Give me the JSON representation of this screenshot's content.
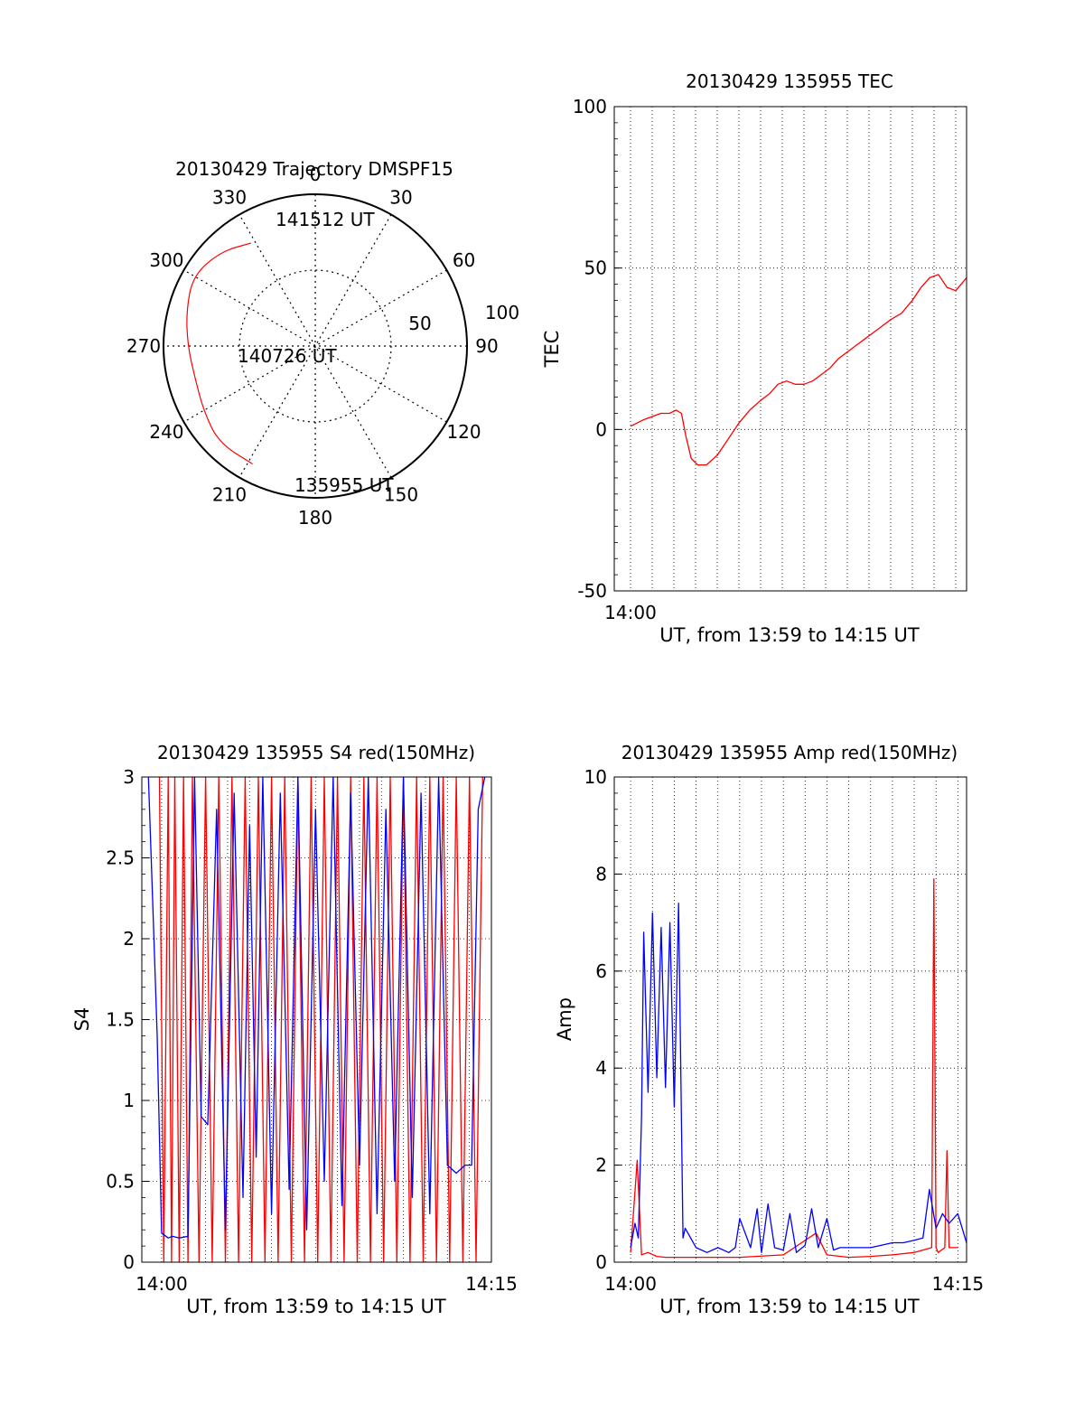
{
  "chart_data": [
    {
      "id": "trajectory",
      "type": "polar",
      "title": "20130429 Trajectory DMSPF15",
      "azimuth_labels": [
        "0",
        "30",
        "60",
        "90",
        "120",
        "150",
        "180",
        "210",
        "240",
        "270",
        "300",
        "330"
      ],
      "ring_labels": [
        "50",
        "100"
      ],
      "r_max": 100,
      "track_color": "#ff0000",
      "track": [
        {
          "az": 328,
          "r": 80
        },
        {
          "az": 315,
          "r": 88
        },
        {
          "az": 300,
          "r": 93
        },
        {
          "az": 285,
          "r": 88
        },
        {
          "az": 270,
          "r": 84
        },
        {
          "az": 255,
          "r": 82
        },
        {
          "az": 240,
          "r": 85
        },
        {
          "az": 225,
          "r": 90
        },
        {
          "az": 208,
          "r": 88
        }
      ],
      "annotations": [
        "141512 UT",
        "140726 UT",
        "135955 UT"
      ]
    },
    {
      "id": "tec",
      "type": "line",
      "title": "20130429 135955 TEC",
      "ylabel": "TEC",
      "xlabel": "UT, from 13:59 to 14:15 UT",
      "ylim": [
        -50,
        100
      ],
      "yticks": [
        "100",
        "50",
        "0",
        "-50"
      ],
      "xticks": [
        "14:00"
      ],
      "x_unit": "minutes after 14:00",
      "xlim": [
        -0.75,
        15.5
      ],
      "grid": true,
      "series": [
        {
          "color": "#ff0000",
          "x": [
            0,
            0.3,
            0.6,
            1.0,
            1.4,
            1.8,
            2.1,
            2.35,
            2.55,
            2.8,
            3.1,
            3.5,
            4.0,
            4.5,
            5.0,
            5.5,
            6.0,
            6.4,
            6.8,
            7.2,
            7.6,
            8.0,
            8.4,
            8.8,
            9.2,
            9.6,
            10.0,
            10.4,
            10.8,
            11.2,
            11.6,
            12.0,
            12.5,
            13.0,
            13.4,
            13.8,
            14.2,
            14.6,
            15.0,
            15.5
          ],
          "values": [
            1,
            2,
            3,
            4,
            5,
            5,
            6,
            5,
            -2,
            -9,
            -11,
            -11,
            -8,
            -3,
            2,
            6,
            9,
            11,
            14,
            15,
            14,
            14,
            15,
            17,
            19,
            22,
            24,
            26,
            28,
            30,
            32,
            34,
            36,
            40,
            44,
            47,
            48,
            44,
            43,
            47
          ]
        }
      ]
    },
    {
      "id": "s4",
      "type": "line",
      "title": "20130429 135955 S4 red(150MHz)",
      "ylabel": "S4",
      "xlabel": "UT, from 13:59 to 14:15 UT",
      "ylim": [
        0,
        3
      ],
      "yticks": [
        "3",
        "2.5",
        "2",
        "1.5",
        "1",
        "0.5",
        "0"
      ],
      "xticks": [
        "14:00",
        "14:15"
      ],
      "x_unit": "minutes after 14:00",
      "xlim": [
        -0.9,
        15.0
      ],
      "grid": true,
      "series": [
        {
          "color": "#ff0000",
          "x": [
            -0.1,
            0.1,
            0.3,
            0.45,
            0.6,
            0.8,
            1.0,
            1.2,
            1.4,
            1.7,
            2.0,
            2.3,
            2.6,
            2.9,
            3.2,
            3.5,
            3.8,
            4.1,
            4.4,
            4.7,
            5.0,
            5.3,
            5.6,
            5.9,
            6.2,
            6.5,
            6.8,
            7.1,
            7.4,
            7.7,
            8.0,
            8.3,
            8.6,
            8.9,
            9.2,
            9.5,
            9.8,
            10.1,
            10.4,
            10.7,
            11.0,
            11.3,
            11.6,
            11.9,
            12.2,
            12.5,
            12.8,
            13.1,
            13.4,
            13.7,
            14.0,
            14.3,
            14.6
          ],
          "values": [
            3,
            0,
            3,
            0,
            3,
            0,
            3,
            0,
            3,
            0,
            3,
            0,
            3,
            0,
            3,
            0,
            3,
            0,
            3,
            0,
            3,
            0,
            3,
            0,
            3,
            0,
            3,
            0,
            3,
            0,
            3,
            0,
            3,
            0,
            3,
            0,
            3,
            0,
            3,
            0,
            3,
            0,
            3,
            0,
            3,
            0,
            3,
            0,
            3,
            0,
            3,
            0,
            3
          ]
        },
        {
          "color": "#0000ff",
          "x": [
            -0.6,
            -0.4,
            -0.2,
            0.0,
            0.3,
            0.5,
            0.8,
            1.2,
            1.5,
            1.8,
            2.1,
            2.5,
            2.9,
            3.3,
            3.7,
            4.0,
            4.3,
            4.6,
            5.0,
            5.4,
            5.8,
            6.2,
            6.6,
            7.0,
            7.4,
            7.8,
            8.2,
            8.6,
            9.0,
            9.4,
            9.8,
            10.2,
            10.6,
            11.0,
            11.4,
            11.8,
            12.2,
            12.6,
            13.0,
            13.4,
            13.8,
            14.1,
            14.4,
            14.7
          ],
          "values": [
            3,
            2.2,
            1.4,
            0.18,
            0.15,
            0.16,
            0.15,
            0.16,
            3,
            0.9,
            0.85,
            2.8,
            0.2,
            2.9,
            0.4,
            2.7,
            0.65,
            3,
            0.3,
            2.9,
            0.45,
            3,
            0.2,
            2.8,
            0.5,
            3,
            0.35,
            2.9,
            0.6,
            3,
            0.3,
            2.8,
            0.5,
            3,
            0.4,
            2.9,
            0.3,
            3,
            0.6,
            0.55,
            0.6,
            0.6,
            2.8,
            3
          ]
        }
      ]
    },
    {
      "id": "amp",
      "type": "line",
      "title": "20130429 135955 Amp red(150MHz)",
      "ylabel": "Amp",
      "xlabel": "UT, from 13:59 to 14:15 UT",
      "ylim": [
        0,
        10
      ],
      "yticks": [
        "10",
        "8",
        "6",
        "4",
        "2",
        "0"
      ],
      "xticks": [
        "14:00",
        "14:15"
      ],
      "x_unit": "minutes after 14:00",
      "xlim": [
        -0.75,
        15.4
      ],
      "grid": true,
      "series": [
        {
          "color": "#ff0000",
          "x": [
            0.0,
            0.3,
            0.5,
            0.8,
            1.2,
            1.6,
            2.0,
            3.0,
            5.0,
            7.0,
            8.5,
            9.0,
            10.0,
            11.0,
            12.0,
            13.0,
            13.8,
            13.9,
            14.0,
            14.1,
            14.4,
            14.5,
            14.6,
            15.0
          ],
          "values": [
            0.2,
            2.1,
            0.15,
            0.2,
            0.12,
            0.1,
            0.1,
            0.1,
            0.1,
            0.15,
            0.6,
            0.15,
            0.1,
            0.12,
            0.15,
            0.2,
            0.3,
            7.9,
            0.3,
            0.2,
            0.3,
            2.3,
            0.3,
            0.3
          ]
        },
        {
          "color": "#0000ff",
          "x": [
            0.0,
            0.2,
            0.35,
            0.5,
            0.6,
            0.8,
            1.0,
            1.2,
            1.4,
            1.6,
            1.8,
            2.0,
            2.2,
            2.4,
            2.5,
            3.0,
            3.5,
            4.0,
            4.5,
            4.8,
            5.0,
            5.5,
            5.8,
            6.0,
            6.3,
            6.6,
            7.0,
            7.3,
            7.6,
            8.0,
            8.3,
            8.6,
            9.0,
            9.3,
            9.6,
            10.0,
            10.5,
            11.0,
            11.5,
            12.0,
            12.5,
            13.0,
            13.4,
            13.7,
            14.0,
            14.3,
            14.6,
            15.0,
            15.4
          ],
          "values": [
            0.3,
            0.8,
            0.5,
            3.0,
            6.8,
            3.5,
            7.2,
            3.8,
            6.9,
            3.6,
            7.0,
            3.2,
            7.4,
            0.5,
            0.7,
            0.3,
            0.2,
            0.3,
            0.2,
            0.3,
            0.9,
            0.3,
            1.1,
            0.2,
            1.2,
            0.3,
            0.25,
            1.0,
            0.2,
            0.35,
            1.1,
            0.3,
            0.9,
            0.25,
            0.3,
            0.3,
            0.3,
            0.3,
            0.35,
            0.4,
            0.4,
            0.45,
            0.5,
            1.5,
            0.7,
            1.0,
            0.8,
            1.0,
            0.4
          ]
        }
      ]
    }
  ]
}
